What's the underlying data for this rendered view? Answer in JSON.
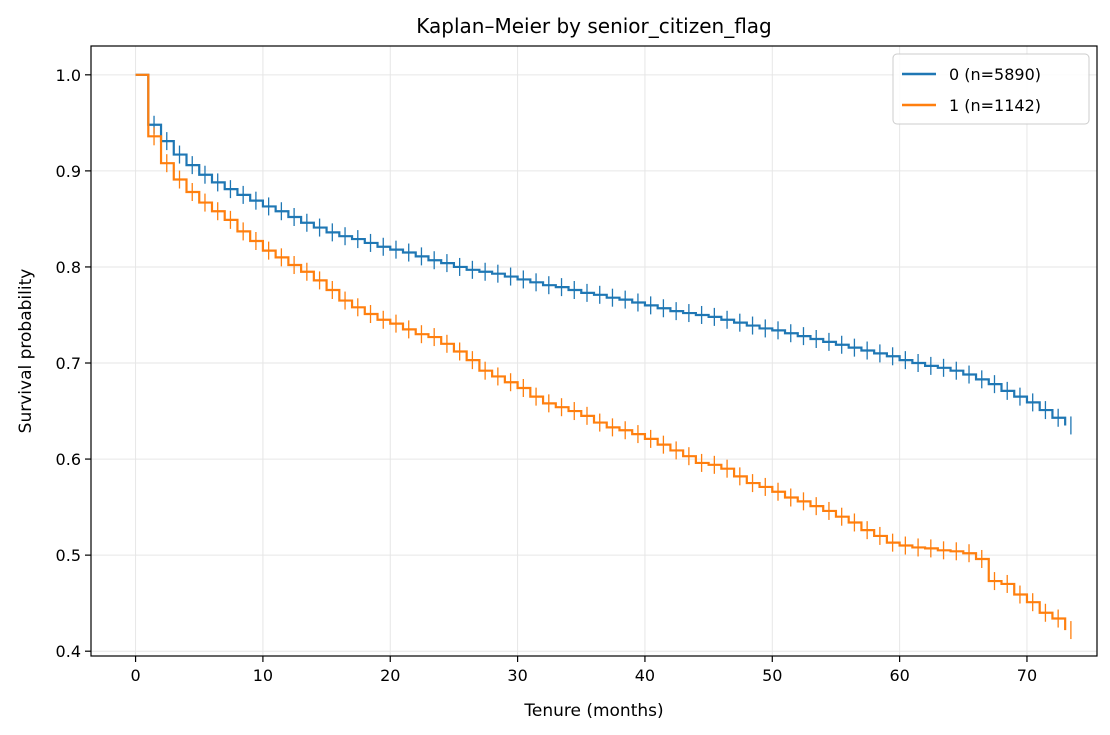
{
  "chart_data": {
    "type": "line",
    "subtype": "kaplan-meier-step",
    "title": "Kaplan–Meier by senior_citizen_flag",
    "xlabel": "Tenure (months)",
    "ylabel": "Survival probability",
    "xlim": [
      -3.5,
      75.5
    ],
    "ylim": [
      0.395,
      1.03
    ],
    "xticks": [
      0,
      10,
      20,
      30,
      40,
      50,
      60,
      70
    ],
    "yticks": [
      0.4,
      0.5,
      0.6,
      0.7,
      0.8,
      0.9,
      1.0
    ],
    "xtick_labels": [
      "0",
      "10",
      "20",
      "30",
      "40",
      "50",
      "60",
      "70"
    ],
    "ytick_labels": [
      "0.4",
      "0.5",
      "0.6",
      "0.7",
      "0.8",
      "0.9",
      "1.0"
    ],
    "grid": true,
    "legend_position": "top-right",
    "series": [
      {
        "name": "0 (n=5890)",
        "color": "#1f77b4",
        "x": [
          0,
          1,
          2,
          3,
          4,
          5,
          6,
          7,
          8,
          9,
          10,
          11,
          12,
          13,
          14,
          15,
          16,
          17,
          18,
          19,
          20,
          21,
          22,
          23,
          24,
          25,
          26,
          27,
          28,
          29,
          30,
          31,
          32,
          33,
          34,
          35,
          36,
          37,
          38,
          39,
          40,
          41,
          42,
          43,
          44,
          45,
          46,
          47,
          48,
          49,
          50,
          51,
          52,
          53,
          54,
          55,
          56,
          57,
          58,
          59,
          60,
          61,
          62,
          63,
          64,
          65,
          66,
          67,
          68,
          69,
          70,
          71,
          72,
          73
        ],
        "y": [
          1.0,
          0.948,
          0.931,
          0.917,
          0.906,
          0.896,
          0.888,
          0.881,
          0.875,
          0.869,
          0.863,
          0.858,
          0.852,
          0.846,
          0.841,
          0.836,
          0.832,
          0.829,
          0.825,
          0.821,
          0.818,
          0.815,
          0.811,
          0.807,
          0.804,
          0.8,
          0.797,
          0.795,
          0.793,
          0.79,
          0.787,
          0.784,
          0.781,
          0.779,
          0.776,
          0.773,
          0.771,
          0.768,
          0.766,
          0.763,
          0.76,
          0.757,
          0.754,
          0.752,
          0.75,
          0.748,
          0.745,
          0.742,
          0.739,
          0.736,
          0.734,
          0.731,
          0.728,
          0.725,
          0.722,
          0.719,
          0.716,
          0.713,
          0.71,
          0.707,
          0.703,
          0.7,
          0.697,
          0.695,
          0.692,
          0.688,
          0.683,
          0.678,
          0.671,
          0.665,
          0.659,
          0.651,
          0.643,
          0.635
        ]
      },
      {
        "name": "1 (n=1142)",
        "color": "#ff7f0e",
        "x": [
          0,
          1,
          2,
          3,
          4,
          5,
          6,
          7,
          8,
          9,
          10,
          11,
          12,
          13,
          14,
          15,
          16,
          17,
          18,
          19,
          20,
          21,
          22,
          23,
          24,
          25,
          26,
          27,
          28,
          29,
          30,
          31,
          32,
          33,
          34,
          35,
          36,
          37,
          38,
          39,
          40,
          41,
          42,
          43,
          44,
          45,
          46,
          47,
          48,
          49,
          50,
          51,
          52,
          53,
          54,
          55,
          56,
          57,
          58,
          59,
          60,
          61,
          62,
          63,
          64,
          65,
          66,
          67,
          68,
          69,
          70,
          71,
          72,
          73
        ],
        "y": [
          1.0,
          0.936,
          0.908,
          0.891,
          0.878,
          0.867,
          0.858,
          0.849,
          0.837,
          0.827,
          0.817,
          0.81,
          0.802,
          0.795,
          0.786,
          0.776,
          0.765,
          0.758,
          0.751,
          0.745,
          0.741,
          0.735,
          0.73,
          0.727,
          0.72,
          0.712,
          0.703,
          0.692,
          0.686,
          0.68,
          0.674,
          0.665,
          0.658,
          0.654,
          0.65,
          0.645,
          0.638,
          0.633,
          0.63,
          0.626,
          0.621,
          0.615,
          0.609,
          0.603,
          0.596,
          0.594,
          0.59,
          0.582,
          0.575,
          0.571,
          0.566,
          0.56,
          0.556,
          0.551,
          0.546,
          0.54,
          0.534,
          0.526,
          0.52,
          0.513,
          0.51,
          0.508,
          0.507,
          0.505,
          0.504,
          0.502,
          0.496,
          0.473,
          0.47,
          0.459,
          0.451,
          0.44,
          0.434,
          0.422
        ]
      }
    ]
  }
}
